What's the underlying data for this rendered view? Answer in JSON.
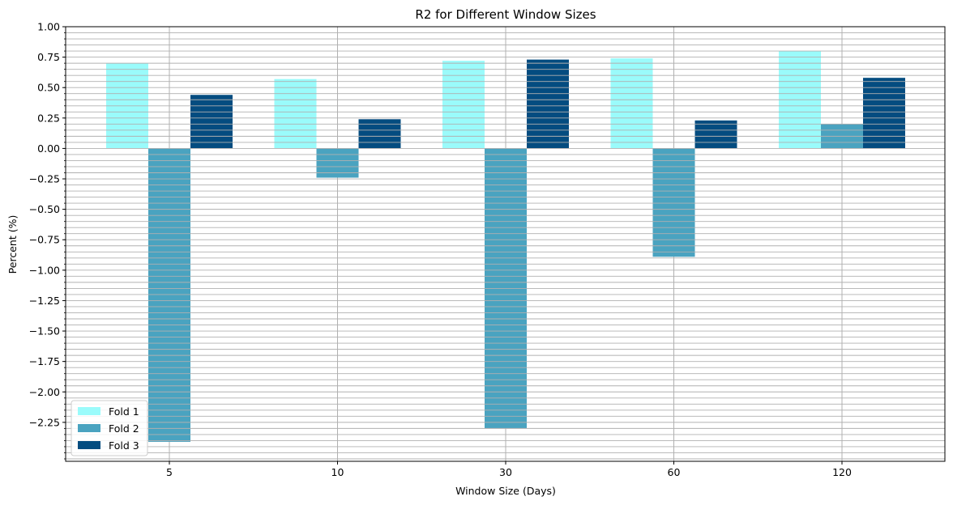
{
  "chart_data": {
    "type": "bar",
    "title": "R2 for Different Window Sizes",
    "xlabel": "Window Size (Days)",
    "ylabel": "Percent (%)",
    "categories": [
      "5",
      "10",
      "30",
      "60",
      "120"
    ],
    "series": [
      {
        "name": "Fold 1",
        "color": "#9afbfb",
        "values": [
          0.7,
          0.57,
          0.72,
          0.74,
          0.8
        ]
      },
      {
        "name": "Fold 2",
        "color": "#4aa3c0",
        "values": [
          -2.41,
          -0.24,
          -2.3,
          -0.89,
          0.2
        ]
      },
      {
        "name": "Fold 3",
        "color": "#044c80",
        "values": [
          0.44,
          0.24,
          0.73,
          0.23,
          0.58
        ]
      }
    ],
    "ylim": [
      -2.57,
      1.0
    ],
    "yticks": [
      1.0,
      0.75,
      0.5,
      0.25,
      0.0,
      -0.25,
      -0.5,
      -0.75,
      -1.0,
      -1.25,
      -1.5,
      -1.75,
      -2.0,
      -2.25
    ],
    "ytick_labels": [
      "1.00",
      "0.75",
      "0.50",
      "0.25",
      "0.00",
      "−0.25",
      "−0.50",
      "−0.75",
      "−1.00",
      "−1.25",
      "−1.50",
      "−1.75",
      "−2.00",
      "−2.25"
    ],
    "minor_tick_step": 0.05,
    "grid": true,
    "legend_position": "lower-left"
  }
}
